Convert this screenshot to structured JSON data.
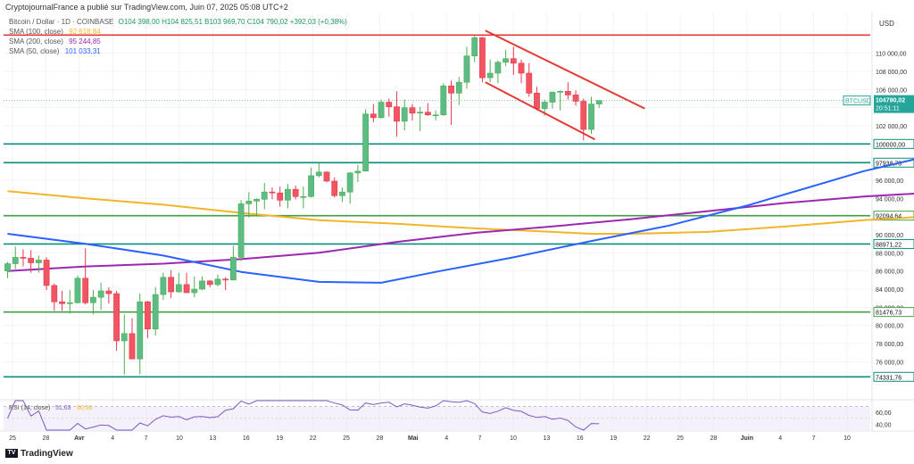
{
  "header": {
    "publisher": "CryptojournalFrance a publié sur TradingView.com, Juin 07, 2025 05:08 UTC+2",
    "symbol_line": "Bitcoin / Dollar · 1D · COINBASE",
    "ohlc": "O104 398,00  H104 825,51  B103 969,70  C104 790,02  +392,03 (+0,38%)"
  },
  "legend": [
    {
      "label": "SMA (100, close)",
      "value": "92 618,84",
      "color": "#f2b52a"
    },
    {
      "label": "SMA (200, close)",
      "value": "95 244,85",
      "color": "#9c27b0"
    },
    {
      "label": "SMA (50, close)",
      "value": "101 033,31",
      "color": "#2962ff"
    }
  ],
  "axis": {
    "currency": "USD"
  },
  "footer": {
    "brand": "TradingView"
  },
  "chart_data": {
    "type": "candlestick",
    "symbol": "BTCUSD",
    "timeframe": "1D",
    "ylim": [
      72000,
      115000
    ],
    "y_ticks": [
      76000,
      78000,
      80000,
      82000,
      84000,
      86000,
      88000,
      90000,
      92000,
      94000,
      96000,
      98000,
      100000,
      102000,
      104000,
      106000,
      108000,
      110000
    ],
    "x_ticks": [
      "25",
      "28",
      "Avr",
      "4",
      "7",
      "10",
      "13",
      "16",
      "19",
      "22",
      "25",
      "28",
      "Mai",
      "4",
      "7",
      "10",
      "13",
      "16",
      "19",
      "22",
      "25",
      "28",
      "Juin",
      "4",
      "7",
      "10"
    ],
    "horizontal_levels": [
      {
        "value": 112000,
        "color": "#e53935",
        "label": ""
      },
      {
        "value": 100000,
        "color": "#0a8f7e",
        "label": "100000,00"
      },
      {
        "value": 97938.73,
        "color": "#0a8f7e",
        "label": "97938,73"
      },
      {
        "value": 92094.64,
        "color": "#43a047",
        "label": "92094,64"
      },
      {
        "value": 88971.22,
        "color": "#0a8f7e",
        "label": "88971,22"
      },
      {
        "value": 81476.73,
        "color": "#43a047",
        "label": "81476,73"
      },
      {
        "value": 74331.76,
        "color": "#0a8f7e",
        "label": "74331,76"
      }
    ],
    "price_label": {
      "symbol": "BTCUSD",
      "price": "104790,02",
      "countdown": "20:51:11"
    },
    "candles": [
      {
        "d": "03-23",
        "o": 86000,
        "h": 87000,
        "l": 85200,
        "c": 86800
      },
      {
        "d": "03-24",
        "o": 86800,
        "h": 88700,
        "l": 86200,
        "c": 87500
      },
      {
        "d": "03-25",
        "o": 87500,
        "h": 88400,
        "l": 86500,
        "c": 87400
      },
      {
        "d": "03-26",
        "o": 87400,
        "h": 88300,
        "l": 85800,
        "c": 86900
      },
      {
        "d": "03-27",
        "o": 86900,
        "h": 87700,
        "l": 85800,
        "c": 87200
      },
      {
        "d": "03-28",
        "o": 87200,
        "h": 87500,
        "l": 83900,
        "c": 84400
      },
      {
        "d": "03-29",
        "o": 84400,
        "h": 84600,
        "l": 81600,
        "c": 82600
      },
      {
        "d": "03-30",
        "o": 82600,
        "h": 83800,
        "l": 81600,
        "c": 82400
      },
      {
        "d": "03-31",
        "o": 82400,
        "h": 83900,
        "l": 81300,
        "c": 82500
      },
      {
        "d": "04-01",
        "o": 82500,
        "h": 85500,
        "l": 82400,
        "c": 85200
      },
      {
        "d": "04-02",
        "o": 85200,
        "h": 88500,
        "l": 82300,
        "c": 82500
      },
      {
        "d": "04-03",
        "o": 82500,
        "h": 83900,
        "l": 81200,
        "c": 83100
      },
      {
        "d": "04-04",
        "o": 83100,
        "h": 84700,
        "l": 81700,
        "c": 83800
      },
      {
        "d": "04-05",
        "o": 83800,
        "h": 84200,
        "l": 82400,
        "c": 83500
      },
      {
        "d": "04-06",
        "o": 83500,
        "h": 83800,
        "l": 77200,
        "c": 78300
      },
      {
        "d": "04-07",
        "o": 78300,
        "h": 81200,
        "l": 74600,
        "c": 79100
      },
      {
        "d": "04-08",
        "o": 79100,
        "h": 80800,
        "l": 76300,
        "c": 76300
      },
      {
        "d": "04-09",
        "o": 76300,
        "h": 83500,
        "l": 74600,
        "c": 82600
      },
      {
        "d": "04-10",
        "o": 82600,
        "h": 82700,
        "l": 78600,
        "c": 79600
      },
      {
        "d": "04-11",
        "o": 79600,
        "h": 84200,
        "l": 78900,
        "c": 83400
      },
      {
        "d": "04-12",
        "o": 83400,
        "h": 85800,
        "l": 82800,
        "c": 85300
      },
      {
        "d": "04-13",
        "o": 85300,
        "h": 86100,
        "l": 83000,
        "c": 83700
      },
      {
        "d": "04-14",
        "o": 83700,
        "h": 85800,
        "l": 83600,
        "c": 84500
      },
      {
        "d": "04-15",
        "o": 84500,
        "h": 85800,
        "l": 83600,
        "c": 83600
      },
      {
        "d": "04-16",
        "o": 83600,
        "h": 85400,
        "l": 83100,
        "c": 84000
      },
      {
        "d": "04-17",
        "o": 84000,
        "h": 85400,
        "l": 83900,
        "c": 84900
      },
      {
        "d": "04-18",
        "o": 84900,
        "h": 85000,
        "l": 84200,
        "c": 84500
      },
      {
        "d": "04-19",
        "o": 84500,
        "h": 85600,
        "l": 84300,
        "c": 85100
      },
      {
        "d": "04-20",
        "o": 85100,
        "h": 85300,
        "l": 83900,
        "c": 85000
      },
      {
        "d": "04-21",
        "o": 85000,
        "h": 88800,
        "l": 85000,
        "c": 87500
      },
      {
        "d": "04-22",
        "o": 87500,
        "h": 93800,
        "l": 87100,
        "c": 93400
      },
      {
        "d": "04-23",
        "o": 93400,
        "h": 94700,
        "l": 91900,
        "c": 93700
      },
      {
        "d": "04-24",
        "o": 93700,
        "h": 94000,
        "l": 92000,
        "c": 93900
      },
      {
        "d": "04-25",
        "o": 93900,
        "h": 95700,
        "l": 92800,
        "c": 94700
      },
      {
        "d": "04-26",
        "o": 94700,
        "h": 95200,
        "l": 93900,
        "c": 94600
      },
      {
        "d": "04-27",
        "o": 94600,
        "h": 95300,
        "l": 93100,
        "c": 93800
      },
      {
        "d": "04-28",
        "o": 93800,
        "h": 95600,
        "l": 92900,
        "c": 95000
      },
      {
        "d": "04-29",
        "o": 95000,
        "h": 95400,
        "l": 93900,
        "c": 94200
      },
      {
        "d": "04-30",
        "o": 94200,
        "h": 95300,
        "l": 92900,
        "c": 94200
      },
      {
        "d": "05-01",
        "o": 94200,
        "h": 97400,
        "l": 94100,
        "c": 96500
      },
      {
        "d": "05-02",
        "o": 96500,
        "h": 97900,
        "l": 96300,
        "c": 96900
      },
      {
        "d": "05-03",
        "o": 96900,
        "h": 97000,
        "l": 95800,
        "c": 95900
      },
      {
        "d": "05-04",
        "o": 95900,
        "h": 96300,
        "l": 94100,
        "c": 94300
      },
      {
        "d": "05-05",
        "o": 94300,
        "h": 95200,
        "l": 93600,
        "c": 94700
      },
      {
        "d": "05-06",
        "o": 94700,
        "h": 96900,
        "l": 93400,
        "c": 96800
      },
      {
        "d": "05-07",
        "o": 96800,
        "h": 97700,
        "l": 95800,
        "c": 97000
      },
      {
        "d": "05-08",
        "o": 97000,
        "h": 103800,
        "l": 97000,
        "c": 103300
      },
      {
        "d": "05-09",
        "o": 103300,
        "h": 104400,
        "l": 102400,
        "c": 102900
      },
      {
        "d": "05-10",
        "o": 102900,
        "h": 104900,
        "l": 102800,
        "c": 104600
      },
      {
        "d": "05-11",
        "o": 104600,
        "h": 105000,
        "l": 103000,
        "c": 104100
      },
      {
        "d": "05-12",
        "o": 104100,
        "h": 105800,
        "l": 100800,
        "c": 102500
      },
      {
        "d": "05-13",
        "o": 102500,
        "h": 104900,
        "l": 101500,
        "c": 104000
      },
      {
        "d": "05-14",
        "o": 104000,
        "h": 104400,
        "l": 102600,
        "c": 103400
      },
      {
        "d": "05-15",
        "o": 103400,
        "h": 104100,
        "l": 101400,
        "c": 103500
      },
      {
        "d": "05-16",
        "o": 103500,
        "h": 104500,
        "l": 103100,
        "c": 103200
      },
      {
        "d": "05-17",
        "o": 103200,
        "h": 103700,
        "l": 102600,
        "c": 103200
      },
      {
        "d": "05-18",
        "o": 103200,
        "h": 106700,
        "l": 103100,
        "c": 106400
      },
      {
        "d": "05-19",
        "o": 106400,
        "h": 107000,
        "l": 102100,
        "c": 105600
      },
      {
        "d": "05-20",
        "o": 105600,
        "h": 107400,
        "l": 104300,
        "c": 106800
      },
      {
        "d": "05-21",
        "o": 106800,
        "h": 110700,
        "l": 106100,
        "c": 109700
      },
      {
        "d": "05-22",
        "o": 109700,
        "h": 111900,
        "l": 109000,
        "c": 111700
      },
      {
        "d": "05-23",
        "o": 111700,
        "h": 111800,
        "l": 106800,
        "c": 107300
      },
      {
        "d": "05-24",
        "o": 107300,
        "h": 109300,
        "l": 106800,
        "c": 107800
      },
      {
        "d": "05-25",
        "o": 107800,
        "h": 109200,
        "l": 106700,
        "c": 109000
      },
      {
        "d": "05-26",
        "o": 109000,
        "h": 110400,
        "l": 108600,
        "c": 109400
      },
      {
        "d": "05-27",
        "o": 109400,
        "h": 110700,
        "l": 107600,
        "c": 108900
      },
      {
        "d": "05-28",
        "o": 108900,
        "h": 109300,
        "l": 106700,
        "c": 107800
      },
      {
        "d": "05-29",
        "o": 107800,
        "h": 108900,
        "l": 105200,
        "c": 105600
      },
      {
        "d": "05-30",
        "o": 105600,
        "h": 106300,
        "l": 103700,
        "c": 103900
      },
      {
        "d": "05-31",
        "o": 103900,
        "h": 104900,
        "l": 103100,
        "c": 104600
      },
      {
        "d": "06-01",
        "o": 104600,
        "h": 105800,
        "l": 103900,
        "c": 105700
      },
      {
        "d": "06-02",
        "o": 105700,
        "h": 105900,
        "l": 103700,
        "c": 105800
      },
      {
        "d": "06-03",
        "o": 105800,
        "h": 106800,
        "l": 104900,
        "c": 105400
      },
      {
        "d": "06-04",
        "o": 105400,
        "h": 105900,
        "l": 104200,
        "c": 104700
      },
      {
        "d": "06-05",
        "o": 104700,
        "h": 105000,
        "l": 100400,
        "c": 101600
      },
      {
        "d": "06-06",
        "o": 101600,
        "h": 105200,
        "l": 101100,
        "c": 104400
      },
      {
        "d": "06-07",
        "o": 104400,
        "h": 104825.51,
        "l": 103969.7,
        "c": 104790.02
      }
    ],
    "sma_200": [
      [
        0,
        86000
      ],
      [
        10,
        86500
      ],
      [
        20,
        86800
      ],
      [
        30,
        87300
      ],
      [
        40,
        88000
      ],
      [
        50,
        89200
      ],
      [
        60,
        90200
      ],
      [
        70,
        90900
      ],
      [
        80,
        91700
      ],
      [
        90,
        92600
      ],
      [
        100,
        93500
      ],
      [
        110,
        94200
      ],
      [
        120,
        94700
      ],
      [
        131,
        95244.85
      ]
    ],
    "sma_100": [
      [
        0,
        94800
      ],
      [
        10,
        94000
      ],
      [
        20,
        93300
      ],
      [
        30,
        92400
      ],
      [
        40,
        91600
      ],
      [
        50,
        91200
      ],
      [
        60,
        90700
      ],
      [
        70,
        90300
      ],
      [
        75,
        90100
      ],
      [
        80,
        90100
      ],
      [
        90,
        90300
      ],
      [
        100,
        90900
      ],
      [
        110,
        91600
      ],
      [
        120,
        92100
      ],
      [
        131,
        92618.84
      ]
    ],
    "sma_50": [
      [
        0,
        90100
      ],
      [
        10,
        89000
      ],
      [
        20,
        87700
      ],
      [
        30,
        85900
      ],
      [
        40,
        84800
      ],
      [
        48,
        84700
      ],
      [
        55,
        85900
      ],
      [
        65,
        87500
      ],
      [
        75,
        89300
      ],
      [
        85,
        91000
      ],
      [
        95,
        93200
      ],
      [
        110,
        97000
      ],
      [
        120,
        99000
      ],
      [
        131,
        101033.31
      ]
    ],
    "channel": {
      "upper": [
        [
          "05-22",
          112500
        ],
        [
          "06-10",
          103900
        ]
      ],
      "lower": [
        [
          "05-22",
          106800
        ],
        [
          "06-06",
          100500
        ]
      ]
    },
    "rsi": {
      "label": "RSI (14, close)",
      "value": "51,63",
      "signal_value": "60,50",
      "ylim": [
        30,
        80
      ],
      "y_ticks": [
        40,
        60
      ],
      "band": [
        30,
        70
      ]
    }
  }
}
